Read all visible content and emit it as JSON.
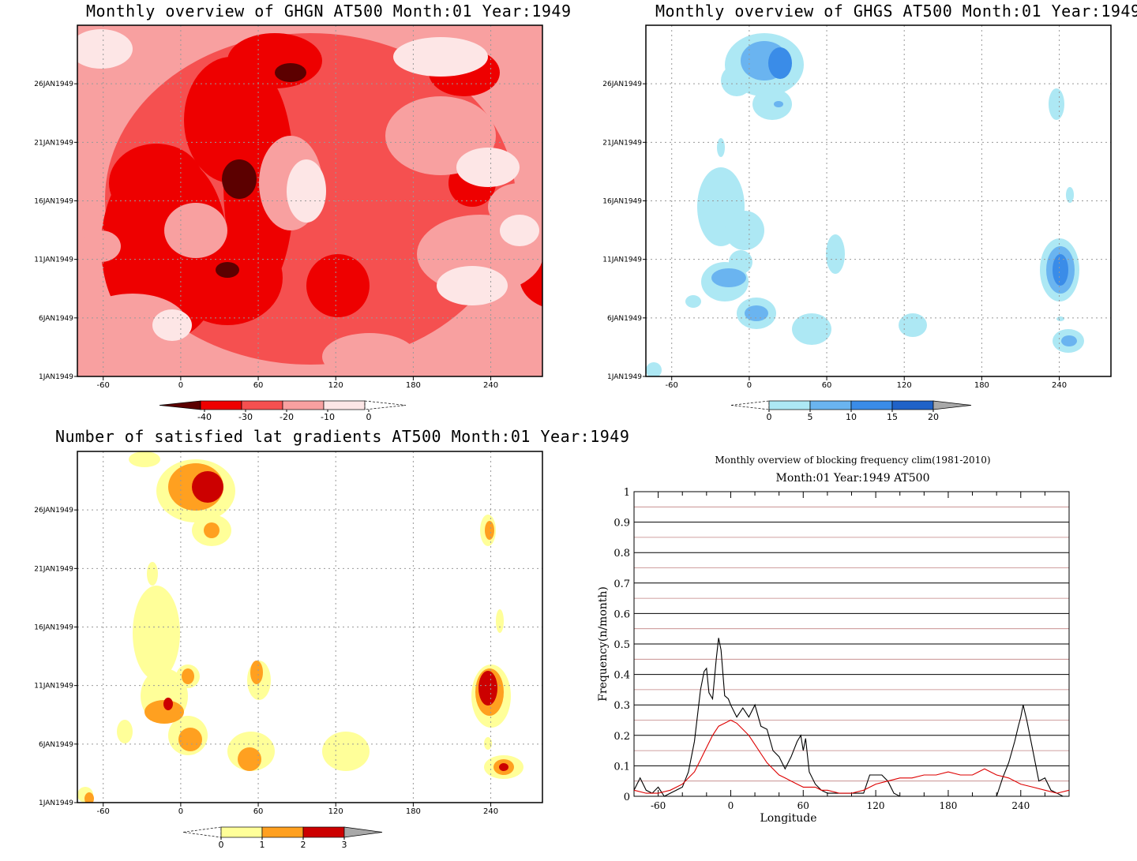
{
  "chart_data": [
    {
      "type": "heatmap",
      "title": "Monthly overview of GHGN AT500 Month:01 Year:1949",
      "x_ticks": [
        "-60",
        "0",
        "60",
        "120",
        "180",
        "240"
      ],
      "y_ticks": [
        "1JAN1949",
        "6JAN1949",
        "11JAN1949",
        "16JAN1949",
        "21JAN1949",
        "26JAN1949"
      ],
      "xlim": [
        -80,
        280
      ],
      "ylim": [
        1,
        31
      ],
      "colorbar": {
        "labels": [
          "-40",
          "-30",
          "-20",
          "-10",
          "0"
        ],
        "colors": [
          "#5c0000",
          "#ee0000",
          "#f55050",
          "#f8a0a0",
          "#fde6e6"
        ]
      }
    },
    {
      "type": "heatmap",
      "title": "Monthly overview of GHGS AT500 Month:01 Year:1949",
      "x_ticks": [
        "-60",
        "0",
        "60",
        "120",
        "180",
        "240"
      ],
      "y_ticks": [
        "1JAN1949",
        "6JAN1949",
        "11JAN1949",
        "16JAN1949",
        "21JAN1949",
        "26JAN1949"
      ],
      "xlim": [
        -80,
        280
      ],
      "ylim": [
        1,
        31
      ],
      "colorbar": {
        "labels": [
          "0",
          "5",
          "10",
          "15",
          "20"
        ],
        "colors": [
          "#ade8f4",
          "#6ab4f0",
          "#3a8ce8",
          "#1f62c8",
          "#a8a8a8"
        ]
      }
    },
    {
      "type": "heatmap",
      "title": "Number of satisfied lat gradients AT500 Month:01 Year:1949",
      "x_ticks": [
        "-60",
        "0",
        "60",
        "120",
        "180",
        "240"
      ],
      "y_ticks": [
        "1JAN1949",
        "6JAN1949",
        "11JAN1949",
        "16JAN1949",
        "21JAN1949",
        "26JAN1949"
      ],
      "xlim": [
        -80,
        280
      ],
      "ylim": [
        1,
        31
      ],
      "colorbar": {
        "labels": [
          "0",
          "1",
          "2",
          "3"
        ],
        "colors": [
          "#ffff99",
          "#ffa020",
          "#cc0000",
          "#a8a8a8"
        ]
      }
    },
    {
      "type": "line",
      "title": "Monthly overview of blocking frequency clim(1981-2010)",
      "subtitle": "Month:01 Year:1949  AT500",
      "xlabel": "Longitude",
      "ylabel": "Frequency(n/month)",
      "xlim": [
        -80,
        280
      ],
      "ylim": [
        0,
        1
      ],
      "x_ticks": [
        "-60",
        "0",
        "60",
        "120",
        "180",
        "240"
      ],
      "y_ticks": [
        "0",
        "0.1",
        "0.2",
        "0.3",
        "0.4",
        "0.5",
        "0.6",
        "0.7",
        "0.8",
        "0.9",
        "1"
      ],
      "series": [
        {
          "color": "#000000",
          "x": [
            -80,
            -75,
            -70,
            -65,
            -60,
            -55,
            -50,
            -45,
            -40,
            -35,
            -30,
            -25,
            -22,
            -20,
            -18,
            -15,
            -12,
            -10,
            -8,
            -5,
            -2,
            0,
            5,
            10,
            15,
            20,
            25,
            30,
            35,
            40,
            45,
            50,
            55,
            58,
            60,
            62,
            65,
            70,
            75,
            80,
            85,
            90,
            95,
            100,
            105,
            110,
            115,
            120,
            125,
            130,
            135,
            140,
            150,
            160,
            170,
            180,
            190,
            200,
            210,
            220,
            225,
            230,
            235,
            238,
            240,
            242,
            245,
            250,
            255,
            260,
            265,
            270,
            275,
            280
          ],
          "y": [
            0.02,
            0.06,
            0.02,
            0.01,
            0.03,
            0.0,
            0.01,
            0.02,
            0.03,
            0.08,
            0.18,
            0.35,
            0.41,
            0.42,
            0.34,
            0.32,
            0.45,
            0.52,
            0.48,
            0.33,
            0.32,
            0.3,
            0.26,
            0.29,
            0.26,
            0.3,
            0.23,
            0.22,
            0.15,
            0.13,
            0.09,
            0.13,
            0.18,
            0.2,
            0.15,
            0.19,
            0.08,
            0.04,
            0.02,
            0.01,
            0.01,
            0.01,
            0.01,
            0.01,
            0.01,
            0.01,
            0.07,
            0.07,
            0.07,
            0.05,
            0.01,
            0.0,
            0.0,
            0.0,
            0.0,
            0.0,
            0.0,
            0.0,
            0.0,
            0.0,
            0.06,
            0.11,
            0.18,
            0.23,
            0.26,
            0.3,
            0.25,
            0.15,
            0.05,
            0.06,
            0.02,
            0.01,
            0.0,
            0.0
          ]
        },
        {
          "color": "#dd0000",
          "x": [
            -80,
            -70,
            -60,
            -50,
            -40,
            -35,
            -30,
            -25,
            -20,
            -15,
            -10,
            -5,
            0,
            5,
            10,
            15,
            20,
            25,
            30,
            35,
            40,
            45,
            50,
            55,
            60,
            65,
            70,
            75,
            80,
            90,
            100,
            110,
            120,
            130,
            140,
            150,
            160,
            170,
            180,
            190,
            200,
            205,
            210,
            215,
            220,
            230,
            240,
            250,
            260,
            270,
            280
          ],
          "y": [
            0.02,
            0.01,
            0.01,
            0.02,
            0.04,
            0.06,
            0.08,
            0.12,
            0.16,
            0.2,
            0.23,
            0.24,
            0.25,
            0.24,
            0.22,
            0.2,
            0.17,
            0.14,
            0.11,
            0.09,
            0.07,
            0.06,
            0.05,
            0.04,
            0.03,
            0.03,
            0.03,
            0.02,
            0.02,
            0.01,
            0.01,
            0.02,
            0.04,
            0.05,
            0.06,
            0.06,
            0.07,
            0.07,
            0.08,
            0.07,
            0.07,
            0.08,
            0.09,
            0.08,
            0.07,
            0.06,
            0.04,
            0.03,
            0.02,
            0.01,
            0.02
          ]
        }
      ]
    }
  ]
}
